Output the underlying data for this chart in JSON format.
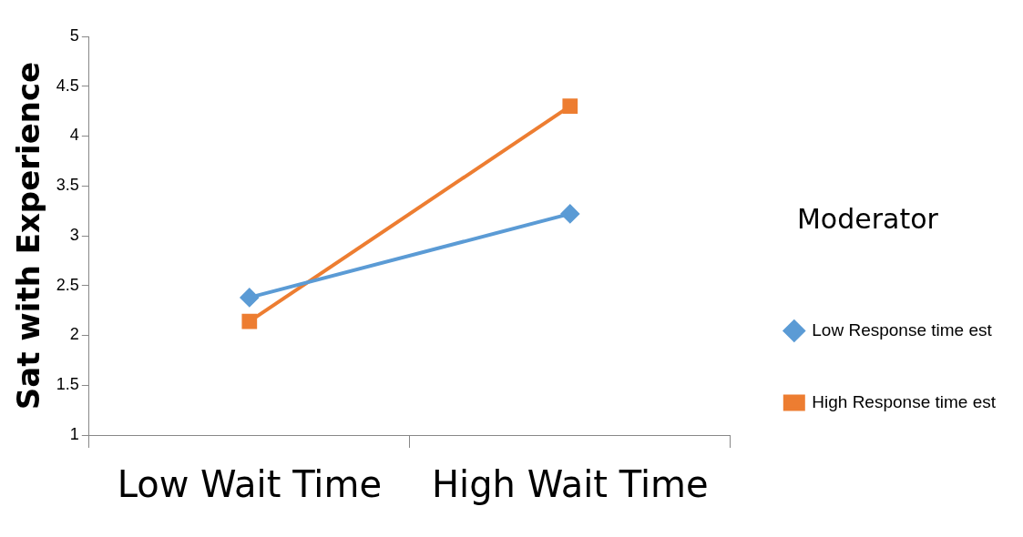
{
  "chart_data": {
    "type": "line",
    "ylabel": "Sat with Experience",
    "legend_title": "Moderator",
    "legend": "right",
    "categories": [
      "Low Wait Time",
      "High Wait Time"
    ],
    "series": [
      {
        "name": "Low Response time est",
        "color": "#5b9bd5",
        "marker": "diamond",
        "values": [
          2.38,
          3.22
        ]
      },
      {
        "name": "High Response time est",
        "color": "#ed7d31",
        "marker": "square",
        "values": [
          2.14,
          4.3
        ]
      }
    ],
    "ylim": [
      1,
      5
    ],
    "yticks": [
      1,
      1.5,
      2,
      2.5,
      3,
      3.5,
      4,
      4.5,
      5
    ]
  }
}
